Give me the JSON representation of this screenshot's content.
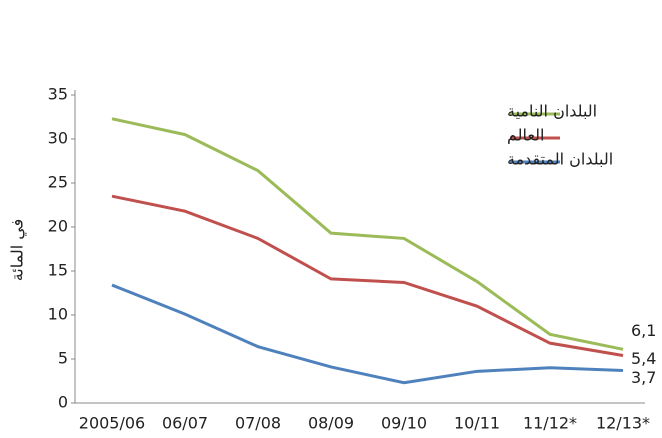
{
  "chart_data": {
    "type": "line",
    "y_label": "في المائة",
    "categories": [
      "2005/06",
      "06/07",
      "07/08",
      "08/09",
      "09/10",
      "10/11",
      "11/12*",
      "12/13*"
    ],
    "series": [
      {
        "name": "البلدان النامية",
        "color": "#9bbb59",
        "values": [
          32.3,
          30.5,
          26.4,
          19.3,
          18.7,
          13.8,
          7.8,
          6.1
        ],
        "value_labels": [
          null,
          null,
          null,
          null,
          null,
          null,
          null,
          "6,1"
        ]
      },
      {
        "name": "العالم",
        "color": "#c0504d",
        "values": [
          23.5,
          21.8,
          18.7,
          14.1,
          13.7,
          11.0,
          6.8,
          5.4
        ],
        "value_labels": [
          null,
          null,
          null,
          null,
          null,
          null,
          null,
          "5,4"
        ]
      },
      {
        "name": "البلدان المتقدمة",
        "color": "#4f81bd",
        "values": [
          13.4,
          10.1,
          6.4,
          4.1,
          2.3,
          3.6,
          4.0,
          3.7
        ],
        "value_labels": [
          null,
          null,
          null,
          null,
          null,
          null,
          null,
          "3,7"
        ]
      }
    ],
    "ylim": [
      0,
      35
    ],
    "yticks": [
      0,
      5,
      10,
      15,
      20,
      25,
      30,
      35
    ]
  }
}
